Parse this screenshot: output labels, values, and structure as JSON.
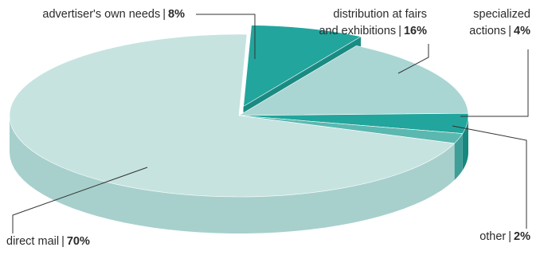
{
  "chart_data": {
    "type": "pie",
    "style": "3d-exploded",
    "slices": [
      {
        "name": "advertiser's own needs",
        "value": 8,
        "value_label": "8%",
        "color": "#22a59c",
        "side_color": "#1a8b83",
        "exploded": true,
        "label_lines": [
          "advertiser's own needs"
        ]
      },
      {
        "name": "distribution at fairs and exhibitions",
        "value": 16,
        "value_label": "16%",
        "color": "#a9d6d3",
        "side_color": "#8dc4c1",
        "exploded": false,
        "label_lines": [
          "distribution at fairs",
          "and exhibitions"
        ]
      },
      {
        "name": "specialized actions",
        "value": 4,
        "value_label": "4%",
        "color": "#22a59c",
        "side_color": "#17877f",
        "exploded": false,
        "label_lines": [
          "specialized",
          "actions"
        ]
      },
      {
        "name": "other",
        "value": 2,
        "value_label": "2%",
        "color": "#5ab8b0",
        "side_color": "#3f9e97",
        "exploded": false,
        "label_lines": [
          "other"
        ]
      },
      {
        "name": "direct mail",
        "value": 70,
        "value_label": "70%",
        "color": "#c6e3e0",
        "side_color": "#a7d0cd",
        "exploded": false,
        "label_lines": [
          "direct mail"
        ]
      }
    ],
    "legend": "none",
    "grid": false
  }
}
